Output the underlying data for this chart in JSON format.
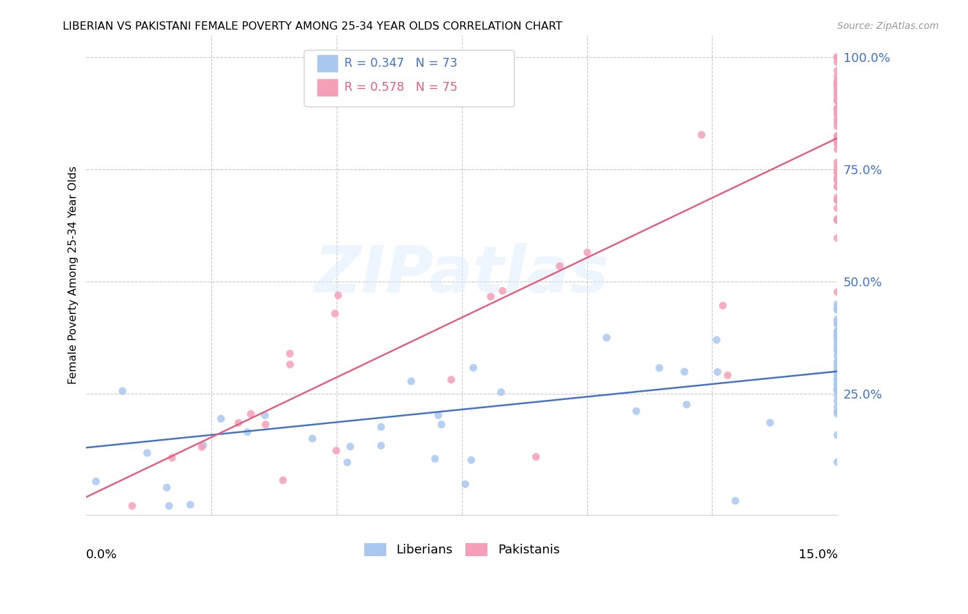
{
  "title": "LIBERIAN VS PAKISTANI FEMALE POVERTY AMONG 25-34 YEAR OLDS CORRELATION CHART",
  "source": "Source: ZipAtlas.com",
  "ylabel": "Female Poverty Among 25-34 Year Olds",
  "xmin": 0.0,
  "xmax": 0.15,
  "ymin": -0.02,
  "ymax": 1.05,
  "liberian_color": "#a8c8f0",
  "pakistani_color": "#f5a0b8",
  "liberian_line_color": "#4472c4",
  "pakistani_line_color": "#e06080",
  "liberian_R": 0.347,
  "liberian_N": 73,
  "pakistani_R": 0.578,
  "pakistani_N": 75,
  "liberian_trend_x0": 0.0,
  "liberian_trend_y0": 0.13,
  "liberian_trend_x1": 0.15,
  "liberian_trend_y1": 0.3,
  "pakistani_trend_x0": 0.0,
  "pakistani_trend_y0": 0.02,
  "pakistani_trend_x1": 0.15,
  "pakistani_trend_y1": 0.82,
  "watermark": "ZIPatlas",
  "grid_color": "#c8c8c8",
  "ytick_values": [
    0.25,
    0.5,
    0.75,
    1.0
  ],
  "ytick_labels": [
    "25.0%",
    "50.0%",
    "75.0%",
    "100.0%"
  ],
  "xtick_values": [
    0.0,
    0.025,
    0.05,
    0.075,
    0.1,
    0.125,
    0.15
  ]
}
